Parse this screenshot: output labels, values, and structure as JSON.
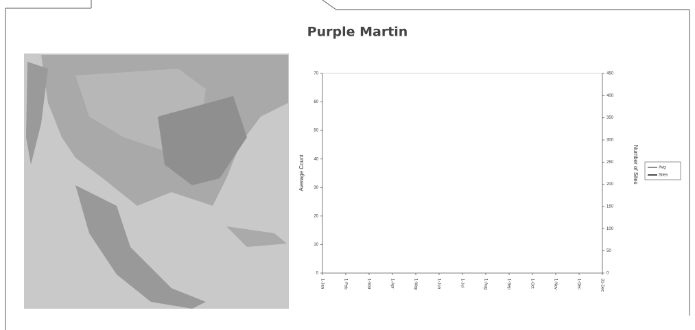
{
  "title": "Purple Martin",
  "chart_data": {
    "type": "line",
    "categories": [
      "1-Jan",
      "1-Feb",
      "1-Mar",
      "1-Apr",
      "1-May",
      "1-Jun",
      "1-Jul",
      "1-Aug",
      "1-Sep",
      "1-Oct",
      "1-Nov",
      "1-Dec",
      "31-Dec"
    ],
    "series": [
      {
        "name": "Avg",
        "color": "#666666",
        "values": [
          null,
          null,
          null,
          null,
          null,
          null,
          null,
          null,
          null,
          null,
          null,
          null,
          null
        ]
      },
      {
        "name": "Sites",
        "color": "#111111",
        "axis": "y2",
        "values": [
          null,
          null,
          null,
          null,
          null,
          null,
          null,
          null,
          null,
          null,
          null,
          null,
          null
        ]
      }
    ],
    "ylabel": "Average Count",
    "y2label": "Number of Sites",
    "ylim": [
      0,
      70
    ],
    "yticks": [
      0,
      10,
      20,
      30,
      40,
      50,
      60,
      70
    ],
    "y2lim": [
      0,
      450
    ],
    "y2ticks": [
      0,
      50,
      100,
      150,
      200,
      250,
      300,
      350,
      400,
      450
    ]
  }
}
